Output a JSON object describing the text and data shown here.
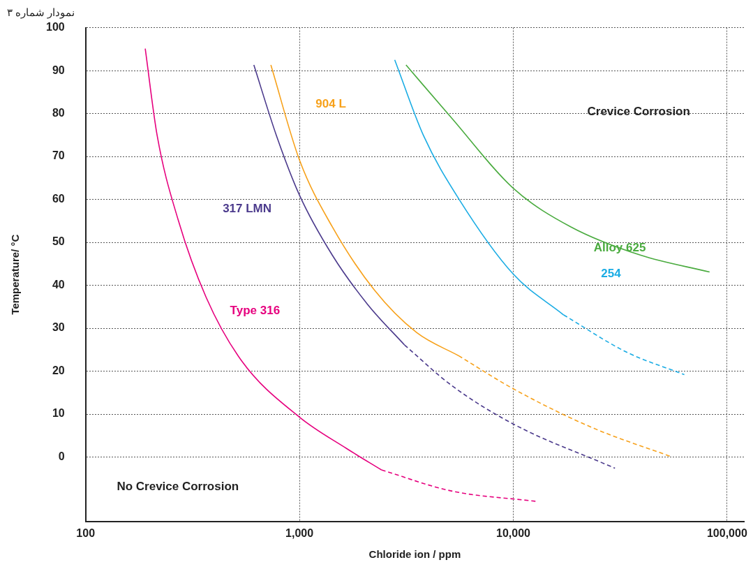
{
  "chart_data": {
    "type": "line",
    "title": "نمودار شماره ۳",
    "xlabel": "Chloride ion / ppm",
    "ylabel": "Temperature/ °C",
    "log": "x",
    "grid": true,
    "legend": false,
    "marker": "none",
    "xlim": [
      100,
      120000
    ],
    "xticks": [
      {
        "value": 100,
        "label": "100"
      },
      {
        "value": 1000,
        "label": "1,000"
      },
      {
        "value": 10000,
        "label": "10,000"
      },
      {
        "value": 100000,
        "label": "100,000"
      }
    ],
    "ylim": [
      -15,
      100
    ],
    "yticks": [
      0,
      10,
      20,
      30,
      40,
      50,
      60,
      70,
      80,
      90,
      100
    ],
    "series": [
      {
        "name": "Type 316",
        "color": "#e6007e",
        "line_style": "solid",
        "x": [
          190,
          216,
          271,
          366,
          535,
          1000,
          1660,
          2420
        ],
        "values": [
          95.1,
          74.9,
          55.2,
          37.2,
          22.5,
          9.3,
          2.0,
          -3.0
        ]
      },
      {
        "color": "#e6007e",
        "line_style": "dashed",
        "x": [
          2420,
          5140,
          12700
        ],
        "values": [
          -3.0,
          -7.9,
          -10.3
        ]
      },
      {
        "name": "317 LMN",
        "color": "#4b3a8c",
        "line_style": "solid",
        "x": [
          612,
          780,
          1000,
          1425,
          2080,
          3100
        ],
        "values": [
          91.3,
          74.9,
          61.0,
          47.0,
          35.6,
          26.1
        ]
      },
      {
        "color": "#4b3a8c",
        "line_style": "dashed",
        "x": [
          3100,
          5140,
          10000,
          29900
        ],
        "values": [
          26.1,
          16.7,
          7.7,
          -2.6
        ]
      },
      {
        "name": "904 L",
        "color": "#f7a11a",
        "line_style": "solid",
        "x": [
          735,
          1000,
          1425,
          2240,
          3530,
          5550
        ],
        "values": [
          91.3,
          69.2,
          53.6,
          38.9,
          29.0,
          23.6
        ]
      },
      {
        "color": "#f7a11a",
        "line_style": "dashed",
        "x": [
          5550,
          10000,
          23300,
          55400
        ],
        "values": [
          23.6,
          15.9,
          6.9,
          0.0
        ]
      },
      {
        "name": "254",
        "color": "#1aace4",
        "line_style": "solid",
        "x": [
          2790,
          3800,
          5550,
          10000,
          17200
        ],
        "values": [
          92.5,
          74.9,
          60.2,
          42.6,
          33.1
        ]
      },
      {
        "color": "#1aace4",
        "line_style": "dashed",
        "x": [
          17200,
          34000,
          63100
        ],
        "values": [
          33.1,
          24.4,
          19.2
        ]
      },
      {
        "name": "Alloy 625",
        "color": "#4aab3f",
        "line_style": "solid",
        "x": [
          3150,
          5140,
          10000,
          18600,
          39500,
          82800
        ],
        "values": [
          91.3,
          79.0,
          62.6,
          53.6,
          47.0,
          43.1
        ]
      }
    ],
    "annotations": [
      "Crevice Corrosion",
      "No Crevice Corrosion"
    ]
  }
}
